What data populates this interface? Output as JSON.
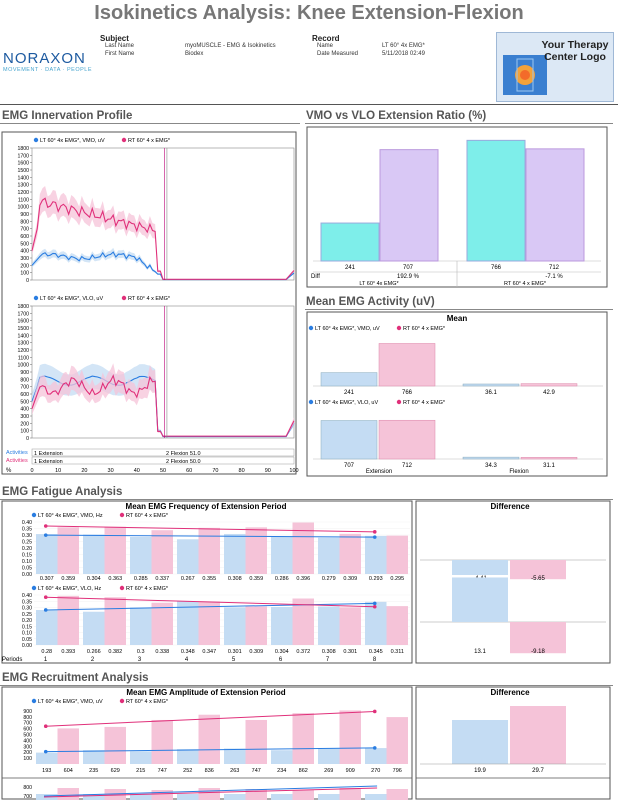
{
  "title": "Isokinetics Analysis: Knee Extension-Flexion",
  "header": {
    "subject_label": "Subject",
    "record_label": "Record",
    "subject_fields": [
      {
        "key": "Last Name",
        "value": "myoMUSCLE - EMG & Isokinetics"
      },
      {
        "key": "First Name",
        "value": "Biodex"
      }
    ],
    "record_fields": [
      {
        "key": "Name",
        "value": "LT 60° 4x EMG*"
      },
      {
        "key": "Date Measured",
        "value": "5/11/2018 02:49"
      }
    ],
    "brand": {
      "name": "NORAXON",
      "tagline": "MOVEMENT · DATA · PEOPLE"
    },
    "logo_text": "Your Therapy Center Logo"
  },
  "colors": {
    "lt": "#2a7de1",
    "rt": "#e0307a",
    "lt_fill": "#c4dcf3",
    "rt_fill": "#f5c3d8",
    "cyan": "#7eeeea",
    "lavender": "#d9c8f5"
  },
  "innervation": {
    "heading": "EMG Innervation Profile",
    "legend_lt_vmo": "LT 60° 4x EMG*, VMO, uV",
    "legend_rt": "RT 60° 4 x EMG*",
    "legend_lt_vlo": "LT 60° 4x EMG*, VLO, uV",
    "yticks": [
      "1800",
      "1700",
      "1600",
      "1500",
      "1400",
      "1300",
      "1200",
      "1100",
      "1000",
      "900",
      "800",
      "700",
      "600",
      "500",
      "400",
      "300",
      "200",
      "100",
      "0"
    ],
    "xticks": [
      "0",
      "10",
      "20",
      "30",
      "40",
      "50",
      "60",
      "70",
      "80",
      "90",
      "100"
    ],
    "x_unit": "%",
    "activities_lt_label": "Activities",
    "activities_rt_label": "Activities",
    "act_lt_1": "1 Extension",
    "act_lt_2": "2 Flexion 51.0",
    "act_rt_1": "1 Extension",
    "act_rt_2": "2 Flexion 50.0"
  },
  "vmo_ratio": {
    "heading": "VMO vs VLO Extension Ratio (%)",
    "diff_label": "Diff",
    "groups": [
      {
        "name": "LT 60° 4x EMG*",
        "vmo": "241",
        "vlo": "707",
        "diff": "192.9 %"
      },
      {
        "name": "RT 60° 4 x EMG*",
        "vmo": "766",
        "vlo": "712",
        "diff": "-7.1 %"
      }
    ]
  },
  "mean_activity": {
    "heading": "Mean EMG Activity (uV)",
    "subtitle": "Mean",
    "legend_vmo": "LT 60° 4x EMG*, VMO, uV",
    "legend_vlo": "LT 60° 4x EMG*, VLO, uV",
    "legend_rt": "RT 60° 4 x EMG*",
    "vmo_values": [
      "241",
      "766",
      "36.1",
      "42.9"
    ],
    "vlo_values": [
      "707",
      "712",
      "34.3",
      "31.1"
    ],
    "cat_ext": "Extension",
    "cat_flex": "Flexion"
  },
  "fatigue": {
    "heading": "EMG Fatigue Analysis",
    "chart_title": "Mean EMG Frequency of Extension Period",
    "diff_title": "Difference",
    "legend_vmo": "LT 60° 4x EMG*, VMO, Hz",
    "legend_vlo": "LT 60° 4x EMG*, VLO, Hz",
    "legend_rt": "RT 60° 4 x EMG*",
    "yticks": [
      "0.40",
      "0.35",
      "0.30",
      "0.25",
      "0.20",
      "0.15",
      "0.10",
      "0.05",
      "0.00"
    ],
    "vmo_labels": [
      "0.307",
      "0.359",
      "0.304",
      "0.363",
      "0.285",
      "0.337",
      "0.267",
      "0.355",
      "0.308",
      "0.359",
      "0.286",
      "0.396",
      "0.279",
      "0.309",
      "0.293",
      "0.295"
    ],
    "vlo_labels": [
      "0.28",
      "0.393",
      "0.266",
      "0.382",
      "0.3",
      "0.338",
      "0.348",
      "0.347",
      "0.301",
      "0.309",
      "0.304",
      "0.372",
      "0.308",
      "0.301",
      "0.345",
      "0.311"
    ],
    "periods_label": "Periods",
    "periods": [
      "1",
      "2",
      "3",
      "4",
      "5",
      "6",
      "7",
      "8"
    ],
    "diff_vmo": [
      "-4.41",
      "-5.65"
    ],
    "diff_vlo": [
      "13.1",
      "-9.18"
    ]
  },
  "recruitment": {
    "heading": "EMG Recruitment Analysis",
    "chart_title": "Mean EMG Amplitude of Extension Period",
    "diff_title": "Difference",
    "legend_lt": "LT 60° 4x EMG*, VMO, uV",
    "legend_rt": "RT 60° 4 x EMG*",
    "yticks": [
      "900",
      "800",
      "700",
      "600",
      "500",
      "400",
      "300",
      "200",
      "100"
    ],
    "labels": [
      "193",
      "604",
      "235",
      "629",
      "215",
      "747",
      "252",
      "836",
      "263",
      "747",
      "234",
      "862",
      "269",
      "909",
      "270",
      "796"
    ],
    "diff": [
      "19.9",
      "29.7"
    ],
    "yticks2": [
      "800",
      "700"
    ]
  },
  "chart_data": [
    {
      "type": "bar",
      "title": "VMO vs VLO Extension Ratio (%)",
      "categories": [
        "LT 60° 4x EMG*",
        "RT 60° 4 x EMG*"
      ],
      "series": [
        {
          "name": "VMO",
          "values": [
            241,
            766
          ]
        },
        {
          "name": "VLO",
          "values": [
            707,
            712
          ]
        }
      ],
      "ylim": [
        0,
        800
      ]
    },
    {
      "type": "bar",
      "title": "Mean",
      "categories": [
        "Extension",
        "Flexion"
      ],
      "series": [
        {
          "name": "LT 60° 4x EMG*, VMO, uV",
          "values": [
            241,
            36.1
          ]
        },
        {
          "name": "RT 60° 4 x EMG*",
          "values": [
            766,
            42.9
          ]
        }
      ],
      "ylim": [
        0,
        900
      ]
    },
    {
      "type": "bar",
      "title": "Mean",
      "categories": [
        "Extension",
        "Flexion"
      ],
      "series": [
        {
          "name": "LT 60° 4x EMG*, VLO, uV",
          "values": [
            707,
            34.3
          ]
        },
        {
          "name": "RT 60° 4 x EMG*",
          "values": [
            712,
            31.1
          ]
        }
      ],
      "ylim": [
        0,
        900
      ]
    },
    {
      "type": "bar",
      "title": "Mean EMG Frequency of Extension Period",
      "categories": [
        "1",
        "2",
        "3",
        "4",
        "5",
        "6",
        "7",
        "8"
      ],
      "series": [
        {
          "name": "LT 60° 4x EMG*, VMO, Hz",
          "values": [
            0.307,
            0.304,
            0.285,
            0.267,
            0.308,
            0.286,
            0.279,
            0.293
          ]
        },
        {
          "name": "RT 60° 4 x EMG*",
          "values": [
            0.359,
            0.363,
            0.337,
            0.355,
            0.359,
            0.396,
            0.309,
            0.295
          ]
        }
      ],
      "ylim": [
        0,
        0.4
      ]
    },
    {
      "type": "bar",
      "title": "Mean EMG Frequency of Extension Period",
      "categories": [
        "1",
        "2",
        "3",
        "4",
        "5",
        "6",
        "7",
        "8"
      ],
      "series": [
        {
          "name": "LT 60° 4x EMG*, VLO, Hz",
          "values": [
            0.28,
            0.266,
            0.3,
            0.348,
            0.301,
            0.304,
            0.308,
            0.345
          ]
        },
        {
          "name": "RT 60° 4 x EMG*",
          "values": [
            0.393,
            0.382,
            0.338,
            0.347,
            0.309,
            0.372,
            0.301,
            0.311
          ]
        }
      ],
      "ylim": [
        0,
        0.4
      ]
    },
    {
      "type": "bar",
      "title": "Mean EMG Amplitude of Extension Period",
      "categories": [
        "1",
        "2",
        "3",
        "4",
        "5",
        "6",
        "7",
        "8"
      ],
      "series": [
        {
          "name": "LT 60° 4x EMG*, VMO, uV",
          "values": [
            193,
            235,
            215,
            252,
            263,
            234,
            269,
            270
          ]
        },
        {
          "name": "RT 60° 4 x EMG*",
          "values": [
            604,
            629,
            747,
            836,
            747,
            862,
            909,
            796
          ]
        }
      ],
      "ylim": [
        0,
        950
      ]
    }
  ]
}
